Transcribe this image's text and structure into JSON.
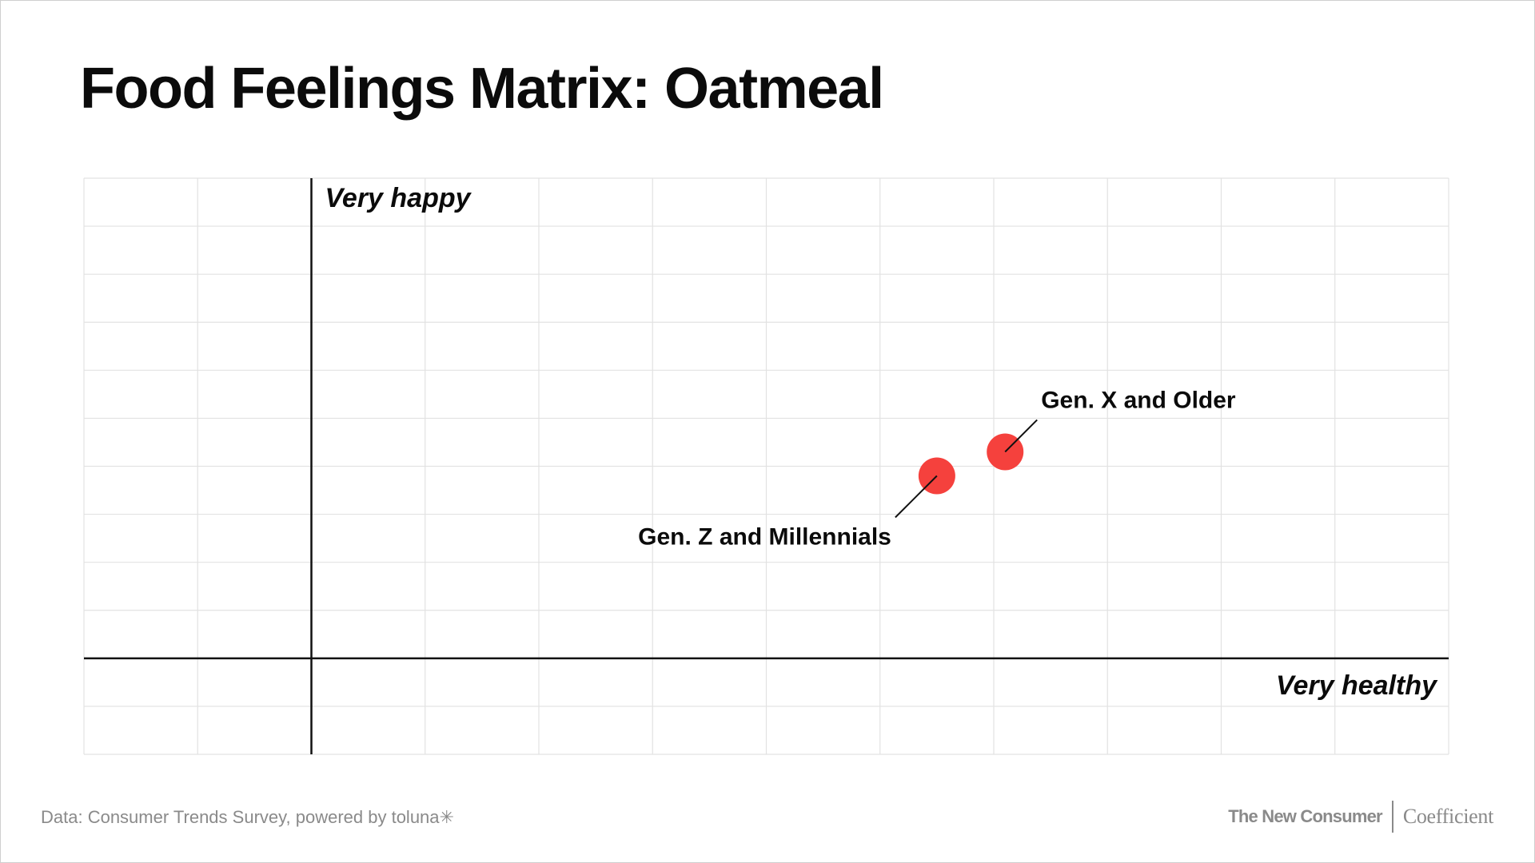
{
  "title": "Food Feelings Matrix: Oatmeal",
  "footer": {
    "source_prefix": "Data: Consumer Trends Survey, powered by ",
    "source_brand": "toluna✳",
    "brand_primary": "The New Consumer",
    "brand_secondary": "Coefficient"
  },
  "chart_data": {
    "type": "scatter",
    "title": "Food Feelings Matrix: Oatmeal",
    "xlabel": "Very healthy",
    "ylabel": "Very happy",
    "grid": true,
    "xlim": [
      -2,
      10
    ],
    "ylim": [
      -2,
      10
    ],
    "points": [
      {
        "name": "Gen. X and Older",
        "x": 6.1,
        "y": 4.3,
        "color": "#f5413d",
        "label_position": "upper-right"
      },
      {
        "name": "Gen. Z and Millennials",
        "x": 5.5,
        "y": 3.8,
        "color": "#f5413d",
        "label_position": "lower-left"
      }
    ]
  }
}
